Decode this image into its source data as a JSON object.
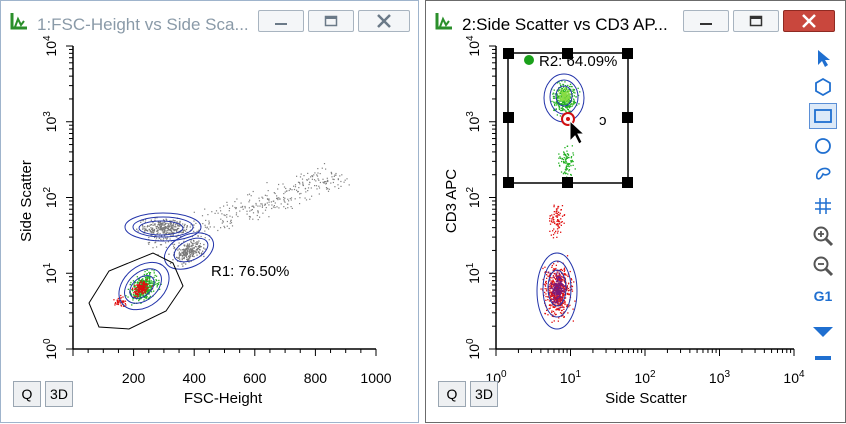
{
  "window1": {
    "title": "1:FSC-Height vs Side Sca...",
    "minimize_icon": "minimize-icon",
    "maximize_icon": "maximize-icon",
    "close_icon": "close-icon",
    "plot": {
      "xlabel": "FSC-Height",
      "ylabel": "Side Scatter",
      "x_ticks": [
        "200",
        "400",
        "600",
        "800",
        "1000"
      ],
      "y_ticks": [
        {
          "base": "10",
          "exp": "0"
        },
        {
          "base": "10",
          "exp": "1"
        },
        {
          "base": "10",
          "exp": "2"
        },
        {
          "base": "10",
          "exp": "3"
        },
        {
          "base": "10",
          "exp": "4"
        }
      ],
      "gate_label": "R1: 76.50%"
    },
    "buttons": {
      "q": "Q",
      "three_d": "3D"
    }
  },
  "window2": {
    "title": "2:Side Scatter vs CD3 AP...",
    "minimize_icon": "minimize-icon",
    "maximize_icon": "maximize-icon",
    "close_icon": "close-icon",
    "plot": {
      "xlabel": "Side Scatter",
      "ylabel": "CD3 APC",
      "x_ticks": [
        {
          "base": "10",
          "exp": "0"
        },
        {
          "base": "10",
          "exp": "1"
        },
        {
          "base": "10",
          "exp": "2"
        },
        {
          "base": "10",
          "exp": "3"
        },
        {
          "base": "10",
          "exp": "4"
        }
      ],
      "y_ticks": [
        {
          "base": "10",
          "exp": "0"
        },
        {
          "base": "10",
          "exp": "1"
        },
        {
          "base": "10",
          "exp": "2"
        },
        {
          "base": "10",
          "exp": "3"
        },
        {
          "base": "10",
          "exp": "4"
        }
      ],
      "gate_label": "R2: 64.09%"
    },
    "buttons": {
      "q": "Q",
      "three_d": "3D"
    },
    "toolbar": [
      {
        "name": "pointer-tool",
        "icon": "arrow-pointer-icon"
      },
      {
        "name": "polygon-gate-tool",
        "icon": "polygon-icon"
      },
      {
        "name": "rectangle-gate-tool",
        "icon": "rectangle-icon",
        "active": true
      },
      {
        "name": "ellipse-gate-tool",
        "icon": "ellipse-icon"
      },
      {
        "name": "freehand-gate-tool",
        "icon": "freehand-icon"
      },
      {
        "name": "quadrant-gate-tool",
        "icon": "quadrant-icon"
      },
      {
        "name": "zoom-in-tool",
        "icon": "zoom-in-icon"
      },
      {
        "name": "zoom-out-tool",
        "icon": "zoom-out-icon"
      },
      {
        "name": "gate-g1-tool",
        "icon": "g1-icon",
        "label": "G1"
      },
      {
        "name": "dropdown-tool",
        "icon": "triangle-down-icon"
      },
      {
        "name": "collapse-tool",
        "icon": "dash-icon"
      }
    ]
  },
  "colors": {
    "accent_blue": "#1f6fd0",
    "gate_green": "#1aa01a",
    "event_red": "#e01010",
    "close_red": "#c9473d"
  }
}
